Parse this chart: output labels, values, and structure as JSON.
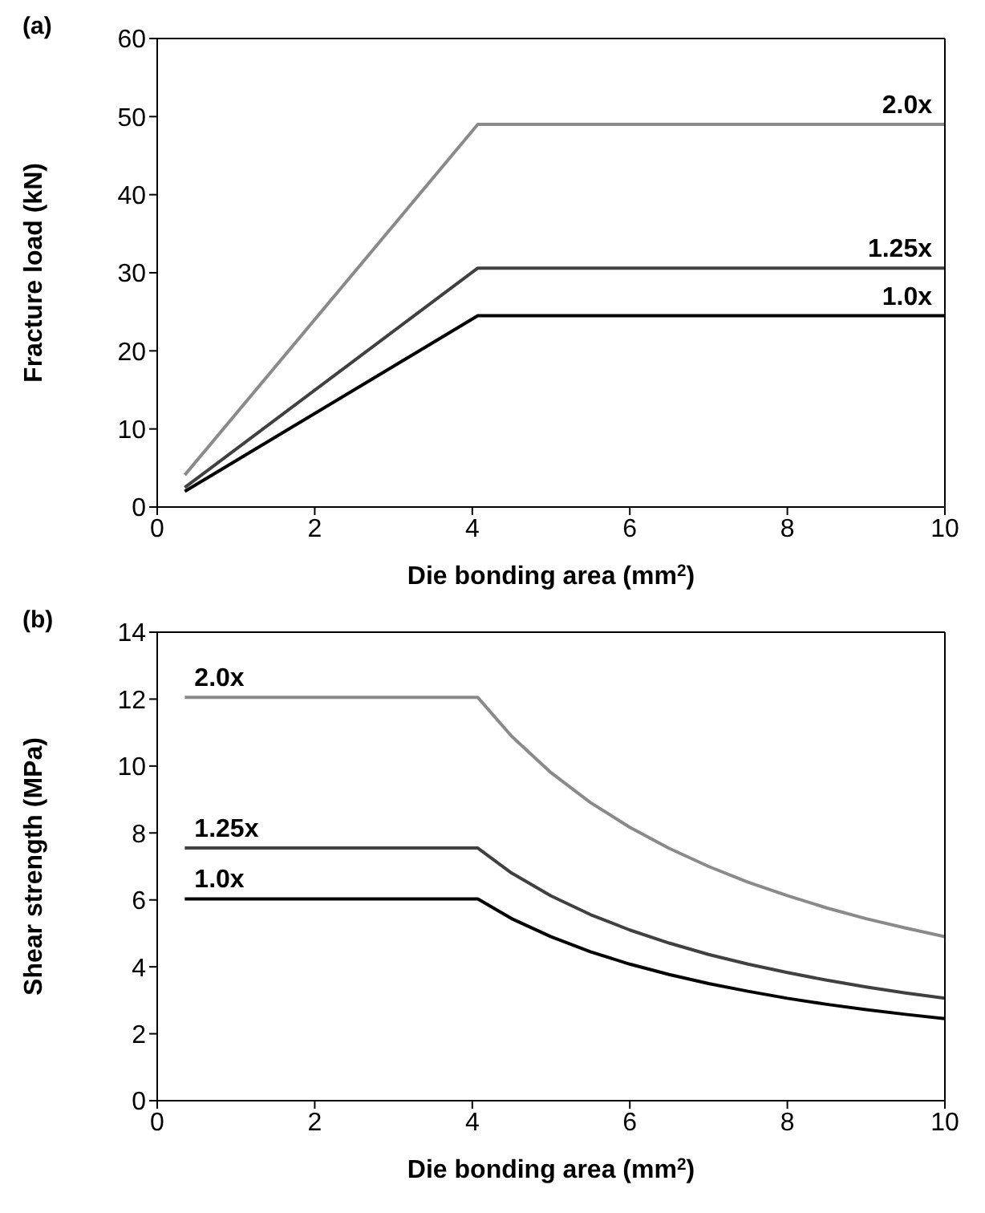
{
  "chart_data": [
    {
      "type": "line",
      "annotations": [
        "(a)"
      ],
      "xlabel": "Die bonding area (mm$^{2}$)",
      "ylabel": "Fracture load (kN)",
      "xlim": [
        0,
        10
      ],
      "xticks": [
        0,
        2,
        4,
        6,
        8,
        10
      ],
      "ylim": [
        0,
        60
      ],
      "yticks": [
        0,
        10,
        20,
        30,
        40,
        50,
        60
      ],
      "legend": false,
      "marker": "none",
      "line_style": "solid",
      "series": [
        {
          "name": "2.0x",
          "color": "#8a8a8a",
          "x": [
            0.35,
            4.07,
            10
          ],
          "values": [
            4.1,
            49,
            49
          ]
        },
        {
          "name": "1.25x",
          "color": "#404040",
          "x": [
            0.35,
            4.07,
            10
          ],
          "values": [
            2.5,
            30.6,
            30.6
          ]
        },
        {
          "name": "1.0x",
          "color": "#000000",
          "x": [
            0.35,
            4.07,
            10
          ],
          "values": [
            2.0,
            24.5,
            24.5
          ]
        }
      ]
    },
    {
      "type": "line",
      "annotations": [
        "(b)"
      ],
      "xlabel": "Die bonding area (mm$^{2}$)",
      "ylabel": "Shear strength (MPa)",
      "xlim": [
        0,
        10
      ],
      "xticks": [
        0,
        2,
        4,
        6,
        8,
        10
      ],
      "ylim": [
        0,
        14
      ],
      "yticks": [
        0,
        2,
        4,
        6,
        8,
        10,
        12,
        14
      ],
      "legend": false,
      "marker": "none",
      "line_style": "solid",
      "series": [
        {
          "name": "2.0x",
          "color": "#8a8a8a",
          "x": [
            0.35,
            4.07,
            4.5,
            5,
            5.5,
            6,
            6.5,
            7,
            7.5,
            8,
            8.5,
            9,
            9.5,
            10
          ],
          "values": [
            12.05,
            12.05,
            10.89,
            9.8,
            8.91,
            8.17,
            7.54,
            7.0,
            6.53,
            6.13,
            5.76,
            5.44,
            5.16,
            4.9
          ]
        },
        {
          "name": "1.25x",
          "color": "#404040",
          "x": [
            0.35,
            4.07,
            4.5,
            5,
            5.5,
            6,
            6.5,
            7,
            7.5,
            8,
            8.5,
            9,
            9.5,
            10
          ],
          "values": [
            7.55,
            7.55,
            6.8,
            6.12,
            5.56,
            5.1,
            4.71,
            4.37,
            4.08,
            3.83,
            3.6,
            3.4,
            3.22,
            3.06
          ]
        },
        {
          "name": "1.0x",
          "color": "#000000",
          "x": [
            0.35,
            4.07,
            4.5,
            5,
            5.5,
            6,
            6.5,
            7,
            7.5,
            8,
            8.5,
            9,
            9.5,
            10
          ],
          "values": [
            6.03,
            6.03,
            5.44,
            4.9,
            4.45,
            4.08,
            3.77,
            3.5,
            3.27,
            3.06,
            2.88,
            2.72,
            2.58,
            2.45
          ]
        }
      ]
    }
  ]
}
